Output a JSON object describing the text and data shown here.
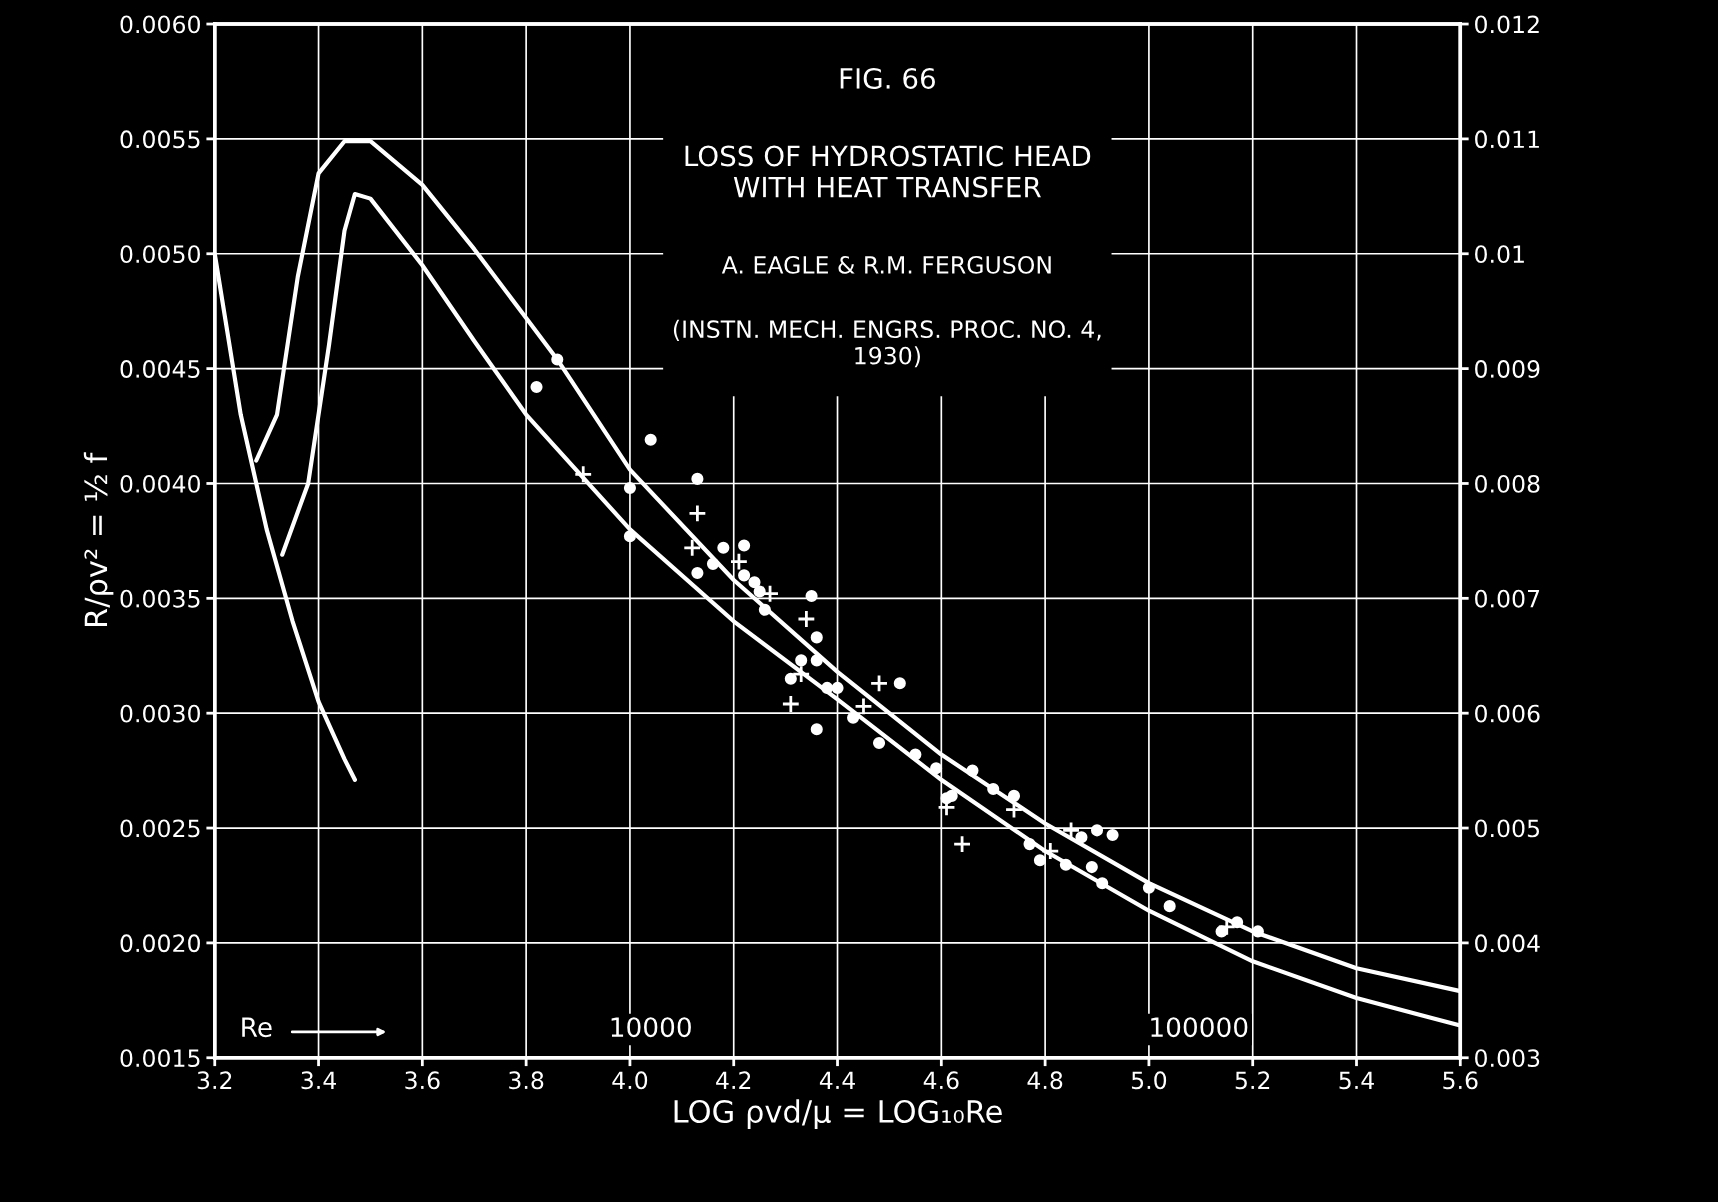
{
  "chart_data": {
    "type": "line",
    "title": "FIG. 66",
    "subtitle": "LOSS OF HYDROSTATIC HEAD WITH HEAT TRANSFER",
    "xlabel": "LOG ρvd/μ = LOG₁₀Re",
    "ylabel": "R/ρv² = ½ f",
    "annotations": [
      "A. EAGLE & R.M. FERGUSON",
      "(INSTN. MECH. ENGRS. PROC. NO. 4, 1930)",
      "Re",
      "10000",
      "100000"
    ],
    "xlim": [
      3.2,
      5.6
    ],
    "ylim": [
      0.0015,
      0.006
    ],
    "y2lim": [
      0.003,
      0.012
    ],
    "xticks": [
      3.2,
      3.4,
      3.6,
      3.8,
      {
        "value": 4.0,
        "label": "4.0"
      },
      4.2,
      4.4,
      4.6,
      4.8,
      {
        "value": 5.0,
        "label": "5.0"
      },
      5.2,
      5.4,
      5.6
    ],
    "yticks": [
      0.0015,
      {
        "value": 0.002,
        "label": "0.0020"
      },
      0.0025,
      {
        "value": 0.003,
        "label": "0.0030"
      },
      0.0035,
      {
        "value": 0.004,
        "label": "0.0040"
      },
      0.0045,
      {
        "value": 0.005,
        "label": "0.0050"
      },
      0.0055,
      {
        "value": 0.006,
        "label": "0.0060"
      }
    ],
    "y2ticks": [
      0.003,
      0.004,
      0.005,
      0.006,
      0.007,
      0.008,
      0.009,
      0.01,
      0.011,
      0.012
    ],
    "grid": true,
    "line_style": "solid",
    "series": [
      {
        "color": "#ffffff",
        "x": [
          3.2,
          3.25,
          3.3,
          3.35,
          3.4,
          3.45,
          3.47
        ],
        "values": [
          0.005,
          0.0043,
          0.0038,
          0.0034,
          0.00305,
          0.0028,
          0.00271
        ]
      },
      {
        "color": "#ffffff",
        "x": [
          3.28,
          3.32,
          3.36,
          3.4,
          3.45,
          3.5,
          3.6,
          3.7,
          3.8,
          3.86,
          4.0,
          4.2,
          4.4,
          4.6,
          4.8,
          5.0,
          5.2,
          5.4,
          5.6
        ],
        "values": [
          0.0041,
          0.0043,
          0.0049,
          0.00535,
          0.00549,
          0.00549,
          0.0053,
          0.00502,
          0.00472,
          0.00454,
          0.00406,
          0.00358,
          0.00318,
          0.00282,
          0.00252,
          0.00226,
          0.00205,
          0.00189,
          0.00179
        ]
      },
      {
        "color": "#ffffff",
        "x": [
          3.33,
          3.38,
          3.42,
          3.45,
          3.47,
          3.5,
          3.6,
          3.7,
          3.8,
          4.0,
          4.2,
          4.4,
          4.6,
          4.8,
          5.0,
          5.2,
          5.4,
          5.6
        ],
        "values": [
          0.00369,
          0.004,
          0.0046,
          0.0051,
          0.00526,
          0.00524,
          0.00495,
          0.00462,
          0.0043,
          0.0038,
          0.0034,
          0.00306,
          0.00271,
          0.0024,
          0.00214,
          0.00192,
          0.00176,
          0.00164
        ]
      },
      {
        "type": "scatter",
        "marker": "circle",
        "color": "#ffffff",
        "x": [
          3.82,
          3.86,
          4.04,
          4.0,
          4.18,
          4.13,
          4.16,
          4.24,
          4.33,
          4.31,
          4.36,
          4.4,
          4.43,
          4.59,
          4.61,
          4.66,
          4.74,
          4.77,
          4.79,
          4.89,
          4.9,
          5.0,
          5.14,
          5.17
        ],
        "values": [
          0.00442,
          0.00454,
          0.00419,
          0.00398,
          0.00372,
          0.00361,
          0.00365,
          0.00357,
          0.00323,
          0.00315,
          0.00323,
          0.00311,
          0.00298,
          0.00276,
          0.00263,
          0.00275,
          0.00264,
          0.00243,
          0.00236,
          0.00233,
          0.00249,
          0.00224,
          0.00205,
          0.00209
        ]
      },
      {
        "type": "scatter",
        "marker": "circle",
        "color": "#ffffff",
        "x": [
          4.0,
          4.13,
          4.22,
          4.22,
          4.25,
          4.26,
          4.35,
          4.36,
          4.38,
          4.36,
          4.52,
          4.48,
          4.55,
          4.62,
          4.7,
          4.87,
          4.93,
          4.84,
          4.91,
          5.04,
          5.21
        ],
        "values": [
          0.00377,
          0.00402,
          0.00373,
          0.0036,
          0.00353,
          0.00345,
          0.00351,
          0.00333,
          0.00311,
          0.00293,
          0.00313,
          0.00287,
          0.00282,
          0.00264,
          0.00267,
          0.00246,
          0.00247,
          0.00234,
          0.00226,
          0.00216,
          0.00205
        ]
      },
      {
        "type": "scatter",
        "marker": "cross",
        "color": "#ffffff",
        "x": [
          3.91,
          4.13,
          4.12,
          4.21,
          4.27,
          4.34,
          4.31,
          4.33,
          4.45,
          4.48,
          4.61,
          4.64,
          4.74,
          4.81,
          4.85,
          5.15
        ],
        "values": [
          0.00404,
          0.00387,
          0.00372,
          0.00366,
          0.00352,
          0.00341,
          0.00304,
          0.00317,
          0.00303,
          0.00313,
          0.00259,
          0.00243,
          0.00258,
          0.0024,
          0.00249,
          0.00207
        ]
      }
    ]
  }
}
